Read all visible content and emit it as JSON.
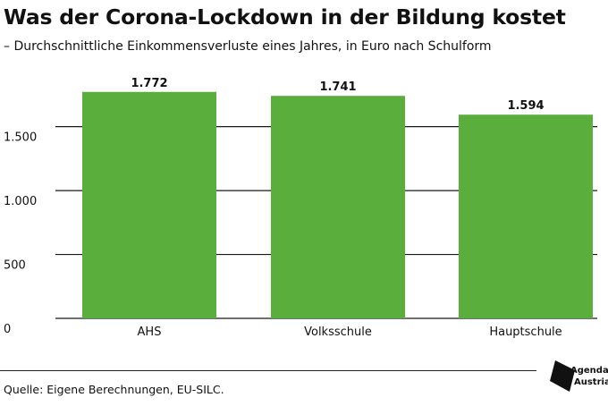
{
  "header": {
    "title": "Was der Corona-Lockdown in der Bildung kostet",
    "subtitle": "– Durchschnittliche Einkommensverluste eines Jahres, in Euro nach Schulform"
  },
  "chart_data": {
    "type": "bar",
    "title": "Was der Corona-Lockdown in der Bildung kostet",
    "subtitle": "– Durchschnittliche Einkommensverluste eines Jahres, in Euro nach Schulform",
    "categories": [
      "AHS",
      "Volksschule",
      "Hauptschule"
    ],
    "values": [
      1772,
      1741,
      1594
    ],
    "value_labels": [
      "1.772",
      "1.741",
      "1.594"
    ],
    "yticks": [
      0,
      500,
      1000,
      1500
    ],
    "ytick_labels": [
      "0",
      "500",
      "1.000",
      "1.500"
    ],
    "ylim": [
      0,
      1900
    ],
    "xlabel": "",
    "ylabel": "",
    "grid": true,
    "bar_color": "#5aae3b",
    "grid_color": "#1a1a1a"
  },
  "footer": {
    "source": "Quelle: Eigene Berechnungen, EU-SILC."
  },
  "logo": {
    "line1": "Agenda",
    "line2": "Austria"
  }
}
